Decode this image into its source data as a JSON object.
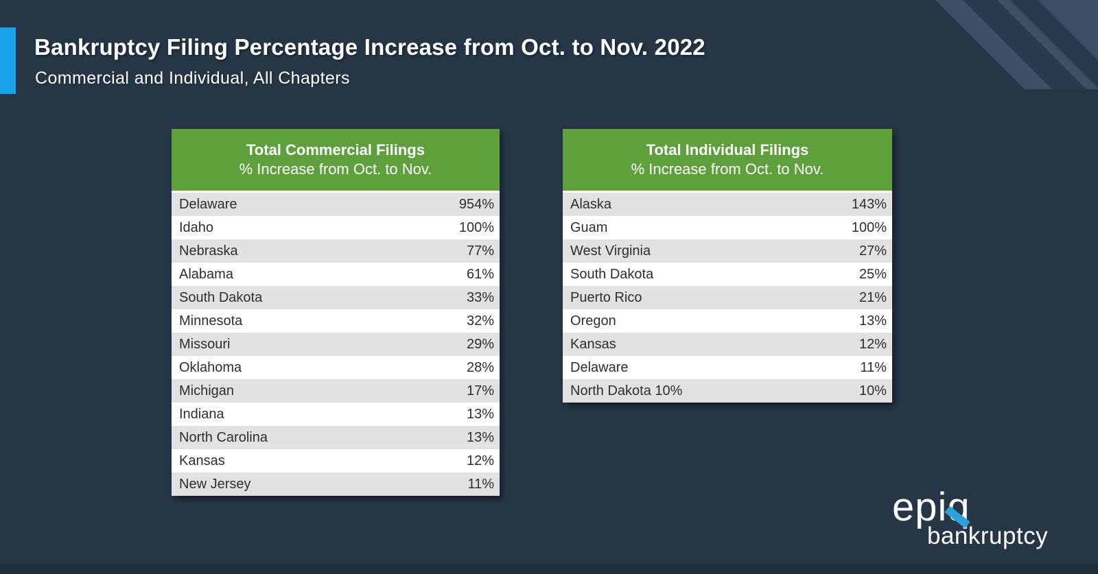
{
  "slide": {
    "title": "Bankruptcy Filing Percentage Increase from Oct. to Nov. 2022",
    "subtitle": "Commercial and Individual, All Chapters"
  },
  "chart_data": [
    {
      "type": "table",
      "title": "Total Commercial Filings",
      "subtitle": "% Increase from Oct. to Nov.",
      "rows": [
        [
          "Delaware",
          "954%"
        ],
        [
          "Idaho",
          "100%"
        ],
        [
          "Nebraska",
          "77%"
        ],
        [
          "Alabama",
          "61%"
        ],
        [
          "South Dakota",
          "33%"
        ],
        [
          "Minnesota",
          "32%"
        ],
        [
          "Missouri",
          "29%"
        ],
        [
          "Oklahoma",
          "28%"
        ],
        [
          "Michigan",
          "17%"
        ],
        [
          "Indiana",
          "13%"
        ],
        [
          "North Carolina",
          "13%"
        ],
        [
          "Kansas",
          "12%"
        ],
        [
          "New Jersey",
          "11%"
        ]
      ]
    },
    {
      "type": "table",
      "title": "Total Individual Filings",
      "subtitle": "% Increase from Oct. to Nov.",
      "rows": [
        [
          "Alaska",
          "143%"
        ],
        [
          "Guam",
          "100%"
        ],
        [
          "West Virginia",
          "27%"
        ],
        [
          "South Dakota",
          "25%"
        ],
        [
          "Puerto Rico",
          "21%"
        ],
        [
          "Oregon",
          "13%"
        ],
        [
          "Kansas",
          "12%"
        ],
        [
          "Delaware",
          "11%"
        ],
        [
          "North Dakota 10%",
          "10%"
        ]
      ]
    }
  ],
  "logo": {
    "name": "epiq",
    "sub": "bankruptcy"
  },
  "colors": {
    "bg": "#263646",
    "bg_bottom": "#1f2e3d",
    "accent_blue": "#18a4e8",
    "green": "#5ea13c",
    "row_gray": "#e2e2e2",
    "row_white": "#ffffff",
    "stripe_light": "#3c4f63",
    "stripe_dark": "#293a4c",
    "logo_blue": "#2ba2dc",
    "text_dark": "#2e2e2e"
  }
}
